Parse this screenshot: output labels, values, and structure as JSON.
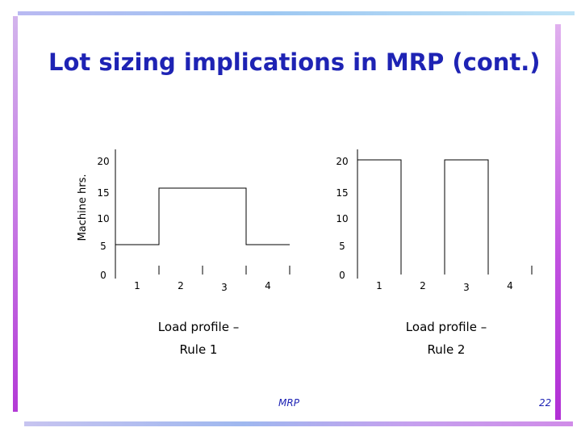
{
  "slide": {
    "title": "Lot sizing implications in MRP (cont.)",
    "footer_left": "MRP",
    "footer_right": "22"
  },
  "chart_data": [
    {
      "type": "step",
      "title": "",
      "caption": [
        "Load profile –",
        "Rule 1"
      ],
      "ylabel": "Machine hrs.",
      "xlabel": "",
      "ylim": [
        0,
        20
      ],
      "yticks": [
        0,
        5,
        10,
        15,
        20
      ],
      "xticks": [
        1,
        2,
        3,
        4
      ],
      "series": [
        {
          "values": [
            5,
            15,
            15,
            5
          ]
        }
      ]
    },
    {
      "type": "step",
      "title": "",
      "caption": [
        "Load profile –",
        "Rule 2"
      ],
      "ylabel": "",
      "xlabel": "",
      "ylim": [
        0,
        20
      ],
      "yticks": [
        0,
        5,
        10,
        15,
        20
      ],
      "xticks": [
        1,
        2,
        3,
        4
      ],
      "series": [
        {
          "values": [
            20,
            0,
            20,
            0
          ]
        }
      ]
    }
  ],
  "colors": {
    "title": "#1e23b4",
    "footer": "#1e23b4",
    "line": "#000000"
  }
}
